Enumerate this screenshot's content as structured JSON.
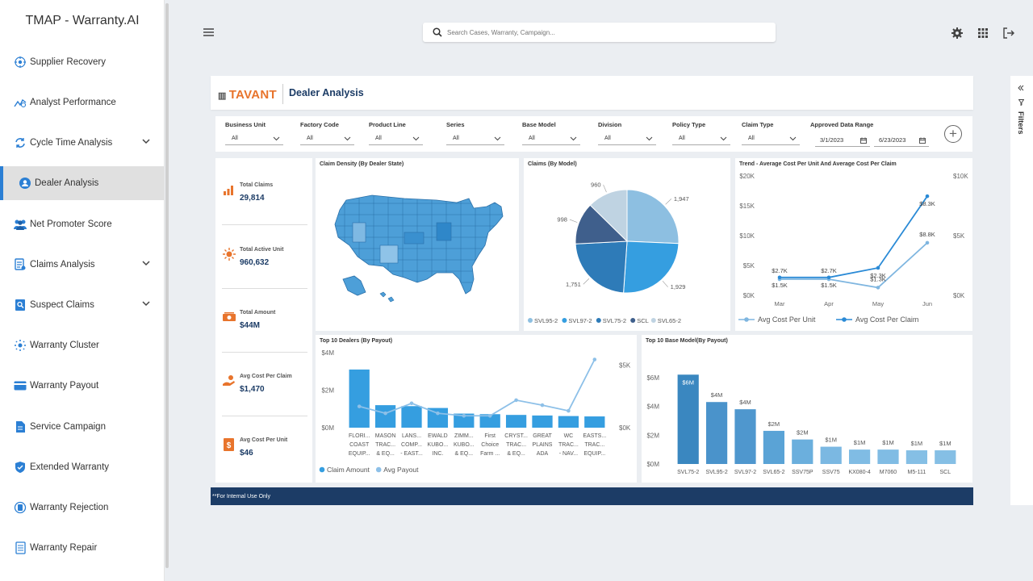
{
  "app": {
    "title": "TMAP - Warranty.AI"
  },
  "sidebar": {
    "items": [
      {
        "label": "Supplier Recovery"
      },
      {
        "label": "Analyst Performance"
      },
      {
        "label": "Cycle Time Analysis"
      },
      {
        "label": "Dealer Analysis"
      },
      {
        "label": "Net Promoter Score"
      },
      {
        "label": "Claims Analysis"
      },
      {
        "label": "Suspect Claims"
      },
      {
        "label": "Warranty Cluster"
      },
      {
        "label": "Warranty Payout"
      },
      {
        "label": "Service Campaign"
      },
      {
        "label": "Extended Warranty"
      },
      {
        "label": "Warranty Rejection"
      },
      {
        "label": "Warranty Repair"
      }
    ]
  },
  "topbar": {
    "search_placeholder": "Search Cases, Warranty, Campaign..."
  },
  "report": {
    "logo": "TAVANT",
    "title": "Dealer Analysis",
    "footer": "**For Internal Use Only"
  },
  "filters": {
    "items": [
      {
        "label": "Business Unit",
        "value": "All"
      },
      {
        "label": "Factory Code",
        "value": "All"
      },
      {
        "label": "Product Line",
        "value": "All"
      },
      {
        "label": "Series",
        "value": "All"
      },
      {
        "label": "Base Model",
        "value": "All"
      },
      {
        "label": "Division",
        "value": "All"
      },
      {
        "label": "Policy Type",
        "value": "All"
      },
      {
        "label": "Claim Type",
        "value": "All"
      }
    ],
    "date_label": "Approved Data Range",
    "date_from": "3/1/2023",
    "date_to": "6/23/2023",
    "pane_label": "Filters"
  },
  "kpis": [
    {
      "label": "Total Claims",
      "value": "29,814"
    },
    {
      "label": "Total Active Unit",
      "value": "960,632"
    },
    {
      "label": "Total Amount",
      "value": "$44M"
    },
    {
      "label": "Avg Cost Per Claim",
      "value": "$1,470"
    },
    {
      "label": "Avg Cost Per Unit",
      "value": "$46"
    }
  ],
  "map": {
    "title": "Claim Density (By Dealer State)"
  },
  "chart_data": [
    {
      "id": "pie",
      "type": "pie",
      "title": "Claims (By Model)",
      "categories": [
        "SVL95-2",
        "SVL97-2",
        "SVL75-2",
        "SCL",
        "SVL65-2"
      ],
      "values": [
        1947,
        1929,
        1751,
        998,
        960
      ],
      "colors": [
        "#8dbfe1",
        "#359ee0",
        "#2e7bb8",
        "#3f5f8c",
        "#bfd3e2"
      ],
      "labels": [
        "1,947",
        "1,929",
        "1,751",
        "998",
        "960"
      ]
    },
    {
      "id": "trend",
      "type": "line",
      "title": "Trend - Average Cost Per Unit And Average Cost Per Claim",
      "categories": [
        "Mar",
        "Apr",
        "May",
        "Jun"
      ],
      "yticks_left": [
        "$20K",
        "$15K",
        "$10K",
        "$5K",
        "$0K"
      ],
      "yticks_right": [
        "$10K",
        "$5K",
        "$0K"
      ],
      "ylim_left": [
        0,
        20000
      ],
      "ylim_right": [
        0,
        10000
      ],
      "series": [
        {
          "name": "Avg Cost Per Unit",
          "axis": "left",
          "values": [
            2700,
            2700,
            1300,
            8800
          ],
          "labels": [
            "$2.7K",
            "$2.7K",
            "$1.3K",
            "$8.8K"
          ],
          "color": "#7fb6e0"
        },
        {
          "name": "Avg Cost Per Claim",
          "axis": "right",
          "values": [
            1500,
            1500,
            2300,
            8300
          ],
          "labels": [
            "$1.5K",
            "$1.5K",
            "$2.3K",
            "$8.3K"
          ],
          "color": "#2a8ad6"
        }
      ]
    },
    {
      "id": "dealers",
      "type": "bar",
      "title": "Top 10 Dealers (By Payout)",
      "categories": [
        [
          "FLORI...",
          "COAST",
          "EQUIP..."
        ],
        [
          "MASON",
          "TRAC...",
          "& EQ..."
        ],
        [
          "LANS...",
          "COMP...",
          "- EAST..."
        ],
        [
          "EWALD",
          "KUBO...",
          "INC."
        ],
        [
          "ZIMM...",
          "KUBO...",
          "& EQ..."
        ],
        [
          "First",
          "Choice",
          "Farm ..."
        ],
        [
          "CRYST...",
          "TRAC...",
          "& EQ..."
        ],
        [
          "GREAT",
          "PLAINS",
          "ADA"
        ],
        [
          "WC",
          "TRAC...",
          "- NAV..."
        ],
        [
          "EASTS...",
          "TRAC...",
          "EQUIP..."
        ]
      ],
      "yticks_left": [
        "$4M",
        "$2M",
        "$0M"
      ],
      "yticks_right": [
        "$5K",
        "$0K"
      ],
      "ylim_left": [
        0,
        4000000
      ],
      "ylim_right": [
        0,
        6000
      ],
      "series": [
        {
          "name": "Claim Amount",
          "type": "bar",
          "axis": "left",
          "values": [
            3100000,
            1200000,
            1150000,
            1050000,
            750000,
            720000,
            680000,
            650000,
            620000,
            600000
          ],
          "color": "#359ee0"
        },
        {
          "name": "Avg Payout",
          "type": "line",
          "axis": "right",
          "values": [
            1700,
            1150,
            1950,
            1150,
            950,
            950,
            2200,
            1800,
            1350,
            5450
          ],
          "color": "#8dc0e8"
        }
      ]
    },
    {
      "id": "models",
      "type": "bar",
      "title": "Top 10 Base Model(By Payout)",
      "categories": [
        "SVL75-2",
        "SVL95-2",
        "SVL97-2",
        "SVL65-2",
        "SSV75P",
        "SSV75",
        "KX080-4",
        "M7060",
        "M5-111",
        "SCL"
      ],
      "yticks": [
        "$6M",
        "$4M",
        "$2M",
        "$0M"
      ],
      "ylim": [
        0,
        7000000
      ],
      "values": [
        6200000,
        4300000,
        3800000,
        2300000,
        1700000,
        1200000,
        1000000,
        1000000,
        950000,
        950000
      ],
      "labels": [
        "$6M",
        "$4M",
        "$4M",
        "$2M",
        "$2M",
        "$1M",
        "$1M",
        "$1M",
        "$1M",
        "$1M"
      ],
      "colors": [
        "#3a87c0",
        "#4a93cb",
        "#4f97ce",
        "#5aa3d6",
        "#6bafdd",
        "#7bb8e2",
        "#80bce4",
        "#80bce4",
        "#85bfe5",
        "#85bfe5"
      ]
    }
  ]
}
